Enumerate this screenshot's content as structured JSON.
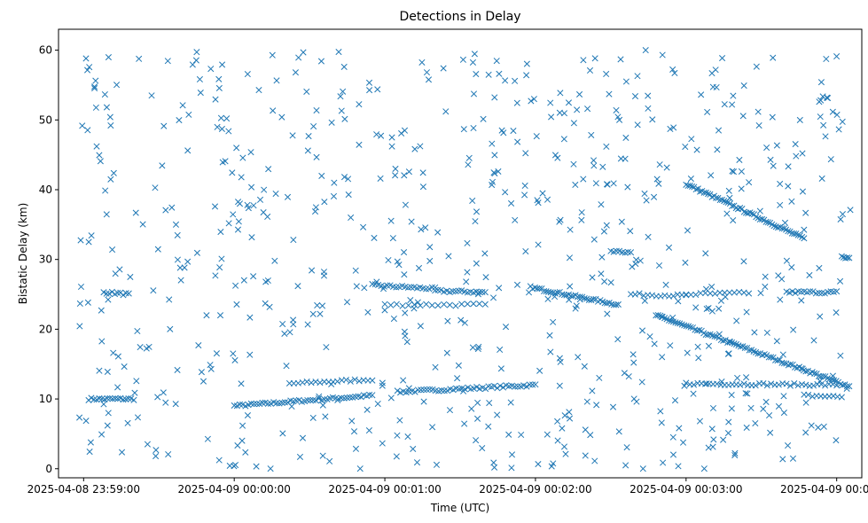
{
  "chart_data": {
    "type": "scatter",
    "title": "Detections in Delay",
    "xlabel": "Time (UTC)",
    "ylabel": "Bistatic Delay (km)",
    "marker": "x",
    "marker_color": "#1f77b4",
    "grid": false,
    "x_ticks": [
      {
        "seconds": 0,
        "label": "2025-04-08 23:59:00"
      },
      {
        "seconds": 60,
        "label": "2025-04-09 00:00:00"
      },
      {
        "seconds": 120,
        "label": "2025-04-09 00:01:00"
      },
      {
        "seconds": 180,
        "label": "2025-04-09 00:02:00"
      },
      {
        "seconds": 240,
        "label": "2025-04-09 00:03:00"
      },
      {
        "seconds": 300,
        "label": "2025-04-09 00:04:00"
      }
    ],
    "xlim": [
      -10,
      310
    ],
    "y_ticks": [
      0,
      10,
      20,
      30,
      40,
      50,
      60
    ],
    "ylim": [
      -1.3,
      63
    ],
    "tracks": [
      {
        "from": [
          2,
          10.0
        ],
        "to": [
          20,
          10.0
        ],
        "n": 18
      },
      {
        "from": [
          60,
          9.0
        ],
        "to": [
          115,
          10.5
        ],
        "n": 50
      },
      {
        "from": [
          82,
          12.2
        ],
        "to": [
          115,
          12.8
        ],
        "n": 20
      },
      {
        "from": [
          125,
          11.0
        ],
        "to": [
          180,
          12.0
        ],
        "n": 48
      },
      {
        "from": [
          8,
          25.3
        ],
        "to": [
          18,
          25.0
        ],
        "n": 10
      },
      {
        "from": [
          115,
          26.3
        ],
        "to": [
          140,
          25.8
        ],
        "n": 22
      },
      {
        "from": [
          140,
          25.5
        ],
        "to": [
          160,
          25.3
        ],
        "n": 18
      },
      {
        "from": [
          120,
          23.5
        ],
        "to": [
          160,
          23.5
        ],
        "n": 18
      },
      {
        "from": [
          178,
          26.0
        ],
        "to": [
          213,
          23.5
        ],
        "n": 40
      },
      {
        "from": [
          218,
          25.0
        ],
        "to": [
          240,
          24.8
        ],
        "n": 14
      },
      {
        "from": [
          228,
          22.0
        ],
        "to": [
          305,
          11.8
        ],
        "n": 90
      },
      {
        "from": [
          240,
          40.8
        ],
        "to": [
          287,
          33.0
        ],
        "n": 60
      },
      {
        "from": [
          240,
          12.2
        ],
        "to": [
          300,
          12.0
        ],
        "n": 40
      },
      {
        "from": [
          240,
          25.0
        ],
        "to": [
          265,
          25.2
        ],
        "n": 14
      },
      {
        "from": [
          280,
          25.3
        ],
        "to": [
          300,
          25.3
        ],
        "n": 18
      },
      {
        "from": [
          287,
          10.5
        ],
        "to": [
          302,
          10.3
        ],
        "n": 10
      },
      {
        "from": [
          210,
          31.2
        ],
        "to": [
          218,
          31.0
        ],
        "n": 8
      },
      {
        "from": [
          302,
          30.3
        ],
        "to": [
          305,
          30.2
        ],
        "n": 5
      }
    ],
    "noise": {
      "count": 720,
      "x_range": [
        -10,
        310
      ],
      "y_range": [
        0,
        60
      ],
      "seed": 7
    }
  }
}
